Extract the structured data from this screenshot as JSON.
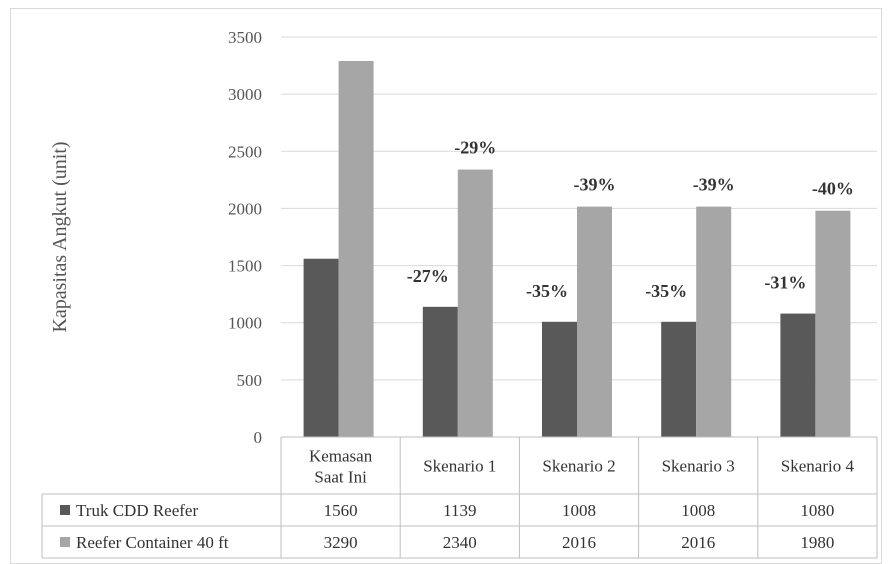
{
  "chart_data": {
    "type": "bar",
    "title": "",
    "xlabel": "",
    "ylabel": "Kapasitas Angkut (unit)",
    "ylim": [
      0,
      3500
    ],
    "yticks": [
      0,
      500,
      1000,
      1500,
      2000,
      2500,
      3000,
      3500
    ],
    "grid": true,
    "legend": "bottom data table",
    "categories": [
      [
        "Kemasan",
        "Saat Ini"
      ],
      [
        "Skenario 1"
      ],
      [
        "Skenario 2"
      ],
      [
        "Skenario 3"
      ],
      [
        "Skenario 4"
      ]
    ],
    "series": [
      {
        "name": "Truk CDD Reefer",
        "color": "#595959",
        "values": [
          1560,
          1139,
          1008,
          1008,
          1080
        ],
        "labels": [
          "",
          "-27%",
          "-35%",
          "-35%",
          "-31%"
        ]
      },
      {
        "name": "Reefer Container 40 ft",
        "color": "#a6a6a6",
        "values": [
          3290,
          2340,
          2016,
          2016,
          1980
        ],
        "labels": [
          "",
          "-29%",
          "-39%",
          "-39%",
          "-40%"
        ]
      }
    ]
  }
}
